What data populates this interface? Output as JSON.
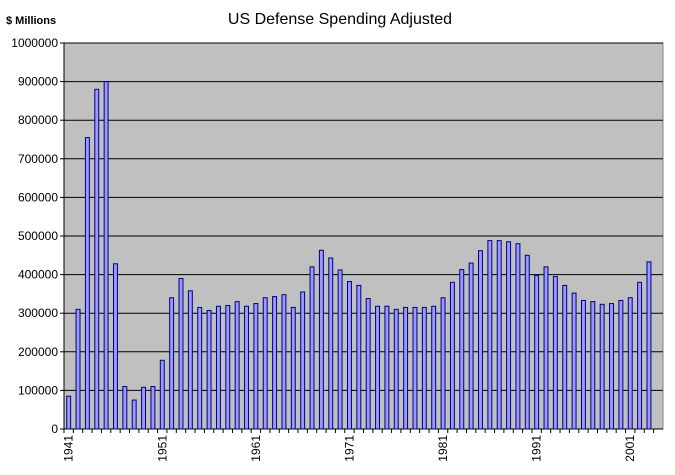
{
  "chart_data": {
    "type": "bar",
    "title": "US Defense Spending Adjusted",
    "ylabel": "$ Millions",
    "xlabel": "",
    "ylim": [
      0,
      1000000
    ],
    "yticks": [
      "0",
      "100000",
      "200000",
      "300000",
      "400000",
      "500000",
      "600000",
      "700000",
      "800000",
      "900000",
      "1000000"
    ],
    "x_tick_labels": [
      "1941",
      "1951",
      "1961",
      "1971",
      "1981",
      "1991",
      "2001"
    ],
    "grid": "horizontal",
    "legend": "none",
    "colors": {
      "plot_bg": "#c0c0c0",
      "bar_fill": "#9999ff",
      "bar_stroke": "#000080",
      "grid": "#000000"
    },
    "categories": [
      1941,
      1942,
      1943,
      1944,
      1945,
      1946,
      1947,
      1948,
      1949,
      1950,
      1951,
      1952,
      1953,
      1954,
      1955,
      1956,
      1957,
      1958,
      1959,
      1960,
      1961,
      1962,
      1963,
      1964,
      1965,
      1966,
      1967,
      1968,
      1969,
      1970,
      1971,
      1972,
      1973,
      1974,
      1975,
      1976,
      1977,
      1978,
      1979,
      1980,
      1981,
      1982,
      1983,
      1984,
      1985,
      1986,
      1987,
      1988,
      1989,
      1990,
      1991,
      1992,
      1993,
      1994,
      1995,
      1996,
      1997,
      1998,
      1999,
      2000,
      2001,
      2002,
      2003,
      2004
    ],
    "values": [
      85000,
      310000,
      755000,
      880000,
      900000,
      428000,
      110000,
      75000,
      108000,
      110000,
      178000,
      340000,
      390000,
      358000,
      315000,
      307000,
      318000,
      320000,
      330000,
      318000,
      325000,
      340000,
      343000,
      348000,
      315000,
      355000,
      420000,
      463000,
      443000,
      412000,
      382000,
      372000,
      338000,
      318000,
      318000,
      310000,
      315000,
      315000,
      315000,
      318000,
      340000,
      380000,
      413000,
      430000,
      462000,
      488000,
      488000,
      485000,
      480000,
      450000,
      398000,
      420000,
      395000,
      372000,
      352000,
      333000,
      330000,
      323000,
      325000,
      333000,
      340000,
      380000,
      433000,
      0
    ]
  }
}
